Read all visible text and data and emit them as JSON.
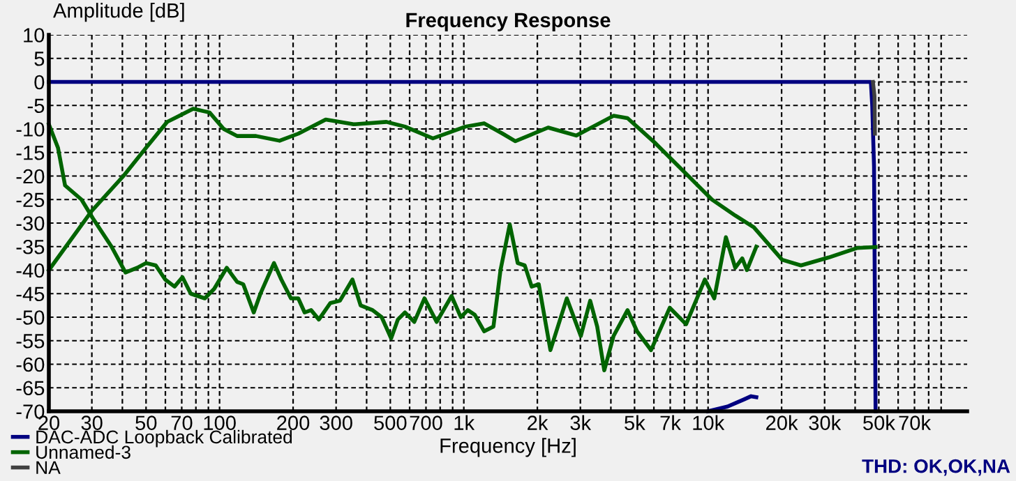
{
  "chart_data": {
    "type": "line",
    "title": "Frequency Response",
    "xlabel": "Frequency [Hz]",
    "ylabel": "Amplitude [dB]",
    "log": "x",
    "xlim": [
      20,
      115000
    ],
    "xticks": [
      20,
      30,
      {
        "value": 40,
        "label": null
      },
      50,
      {
        "value": 60,
        "label": null
      },
      70,
      {
        "value": 80,
        "label": null
      },
      {
        "value": 90,
        "label": null
      },
      100,
      200,
      300,
      {
        "value": 400,
        "label": null
      },
      500,
      {
        "value": 600,
        "label": null
      },
      700,
      {
        "value": 800,
        "label": null
      },
      {
        "value": 900,
        "label": null
      },
      {
        "value": 1000,
        "label": "1k"
      },
      {
        "value": 2000,
        "label": "2k"
      },
      {
        "value": 3000,
        "label": "3k"
      },
      {
        "value": 4000,
        "label": null
      },
      {
        "value": 5000,
        "label": "5k"
      },
      {
        "value": 6000,
        "label": null
      },
      {
        "value": 7000,
        "label": "7k"
      },
      {
        "value": 8000,
        "label": null
      },
      {
        "value": 9000,
        "label": null
      },
      {
        "value": 10000,
        "label": "10k"
      },
      {
        "value": 20000,
        "label": "20k"
      },
      {
        "value": 30000,
        "label": "30k"
      },
      {
        "value": 40000,
        "label": null
      },
      {
        "value": 50000,
        "label": "50k"
      },
      {
        "value": 60000,
        "label": null
      },
      {
        "value": 70000,
        "label": "70k"
      },
      {
        "value": 80000,
        "label": null
      },
      {
        "value": 90000,
        "label": null
      }
    ],
    "ylim": [
      -70,
      10
    ],
    "yticks": [
      -70,
      -65,
      -60,
      -55,
      -50,
      -45,
      -40,
      -35,
      -30,
      -25,
      -20,
      -15,
      -10,
      -5,
      0,
      5,
      10
    ],
    "grid": true,
    "legend": "bottom left",
    "marker": "none",
    "line_style": "solid",
    "annotations": [
      "THD: OK,OK,NA"
    ],
    "series": [
      {
        "name": "DAC-ADC Loopback Calibrated",
        "color": "#000080",
        "x": [
          20,
          46400,
          47000,
          47800,
          48500
        ],
        "values": [
          0,
          0,
          -5,
          -18,
          -70
        ]
      },
      {
        "color": "#000080",
        "x": [
          10000,
          12000,
          14000,
          15000,
          15760
        ],
        "values": [
          -70,
          -69,
          -67.5,
          -66.8,
          -67
        ]
      },
      {
        "name": "Unnamed-3",
        "color": "#006400",
        "x": [
          20,
          30,
          40.4,
          50,
          61,
          78,
          91,
          104,
          118,
          141,
          176,
          210,
          272,
          354,
          482,
          574,
          747,
          1016,
          1210,
          1442,
          1626,
          2214,
          2884,
          4102,
          4680,
          6106,
          8304,
          10370,
          12920,
          15400,
          20100,
          24000,
          31200,
          40650,
          48500
        ],
        "values": [
          -40,
          -27.4,
          -20,
          -14,
          -8.5,
          -5.7,
          -6.5,
          -10,
          -11.5,
          -11.5,
          -12.5,
          -11,
          -8,
          -9,
          -8.5,
          -9.5,
          -12,
          -9.5,
          -8.8,
          -11,
          -12.6,
          -9.7,
          -11.4,
          -7.2,
          -7.7,
          -13.1,
          -20,
          -25,
          -28.4,
          -30.9,
          -37.8,
          -39,
          -37.3,
          -35.3,
          -35.1
        ]
      },
      {
        "color": "#006400",
        "x": [
          20,
          21.8,
          23.3,
          27.2,
          30.3,
          36.1,
          41.2,
          46,
          50,
          54.8,
          59.9,
          65.4,
          70.5,
          76.2,
          87,
          95,
          107,
          118,
          125,
          138,
          147,
          167,
          179,
          196,
          210,
          223,
          237,
          255,
          284,
          311,
          350,
          378,
          423,
          461,
          504,
          537,
          574,
          627,
          690,
          774,
          891,
          972,
          1038,
          1109,
          1211,
          1322,
          1413,
          1542,
          1662,
          1776,
          1896,
          2027,
          2262,
          2640,
          3013,
          3291,
          3516,
          3758,
          4102,
          4680,
          5118,
          5842,
          6966,
          8128,
          9700,
          10600,
          11830,
          12920,
          13800,
          14420,
          15760
        ],
        "values": [
          -9,
          -14,
          -22,
          -25,
          -29,
          -35,
          -40.5,
          -39.5,
          -38.5,
          -39,
          -42,
          -43.5,
          -41.5,
          -45,
          -46,
          -44,
          -39.5,
          -42.5,
          -43,
          -49,
          -45,
          -38.5,
          -42,
          -46,
          -46,
          -49,
          -48.5,
          -50.5,
          -47,
          -46.5,
          -42,
          -47.5,
          -48.5,
          -50,
          -54.5,
          -50.5,
          -49,
          -51,
          -46,
          -51,
          -45.5,
          -50,
          -48.5,
          -49.5,
          -53,
          -52,
          -40,
          -30.3,
          -38.5,
          -39,
          -43.5,
          -43,
          -57,
          -46,
          -54,
          -46.5,
          -52,
          -61.3,
          -54,
          -48.5,
          -53,
          -57,
          -48,
          -51.5,
          -42,
          -46,
          -33,
          -39.5,
          -37.5,
          -40,
          -35
        ]
      },
      {
        "name": "NA",
        "color": "#404040",
        "x": [
          47300,
          48000,
          48200
        ],
        "values": [
          0,
          -3,
          -11
        ]
      }
    ]
  }
}
